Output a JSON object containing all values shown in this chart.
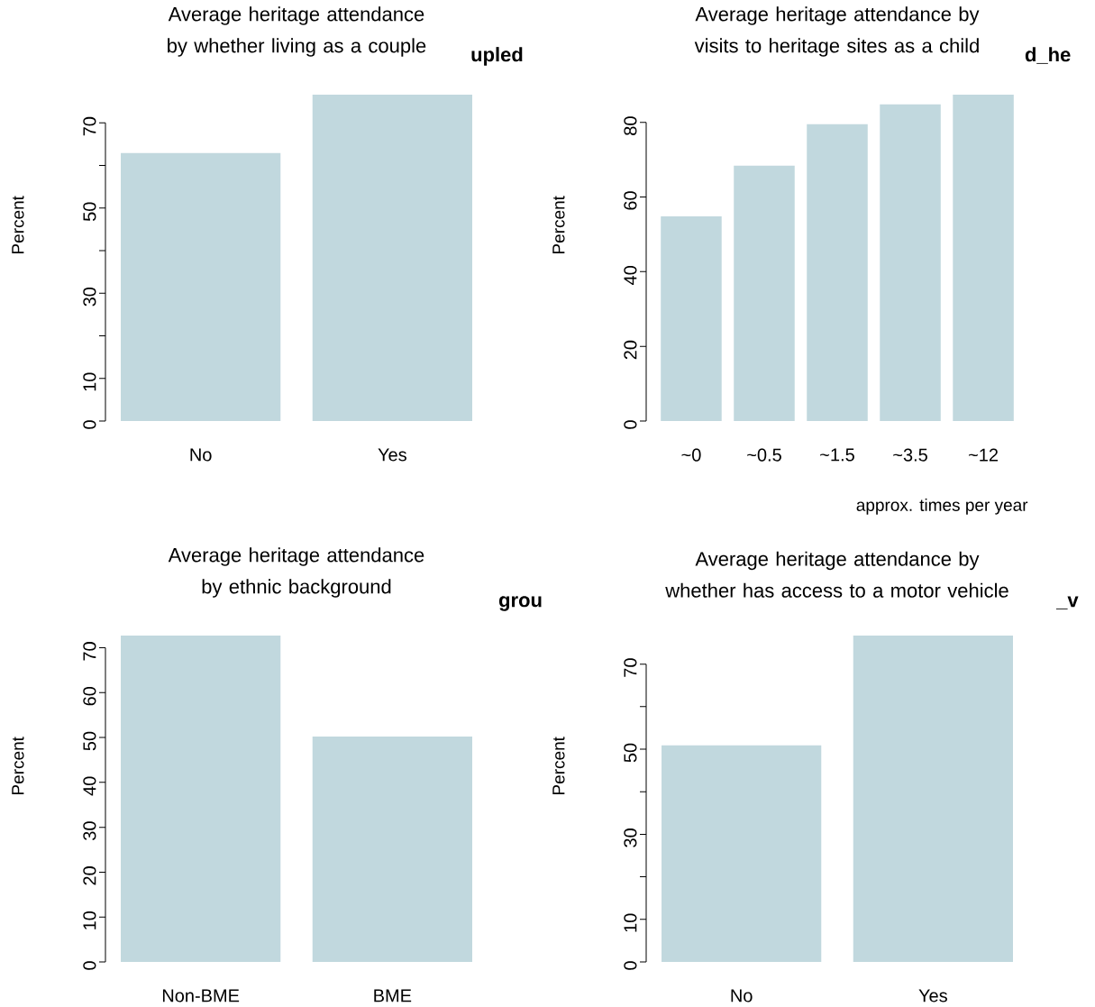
{
  "chart_data": [
    {
      "type": "bar",
      "title": "Average heritage attendance by whether living as a couple",
      "ylabel": "Percent",
      "categories": [
        "No",
        "Yes"
      ],
      "values": [
        62.9,
        76.6
      ],
      "color": "#c1d8de",
      "ylim": [
        0,
        76.6
      ],
      "yticks": [
        0,
        10,
        {
          "value": 20,
          "label": null
        },
        30,
        {
          "value": 40,
          "label": null
        },
        50,
        {
          "value": 60,
          "label": null
        },
        70
      ],
      "annotations": [
        "upled"
      ]
    },
    {
      "type": "bar",
      "title": "Average heritage attendance by visits to heritage sites as a child",
      "ylabel": "Percent",
      "xlabel": "approx. times per year",
      "categories": [
        "~0",
        "~0.5",
        "~1.5",
        "~3.5",
        "~12"
      ],
      "values": [
        54.8,
        68.4,
        79.5,
        84.8,
        87.4
      ],
      "color": "#c1d8de",
      "ylim": [
        0,
        87.4
      ],
      "yticks": [
        0,
        20,
        40,
        60,
        80
      ],
      "annotations": [
        "d_he"
      ]
    },
    {
      "type": "bar",
      "title": "Average heritage attendance by ethnic background",
      "ylabel": "Percent",
      "categories": [
        "Non-BME",
        "BME"
      ],
      "values": [
        72.7,
        50.2
      ],
      "color": "#c1d8de",
      "ylim": [
        0,
        72.7
      ],
      "yticks": [
        0,
        10,
        20,
        30,
        40,
        50,
        60,
        70
      ],
      "annotations": [
        "grou"
      ]
    },
    {
      "type": "bar",
      "title": "Average heritage attendance by whether has access to a motor vehicle",
      "ylabel": "Percent",
      "categories": [
        "No",
        "Yes"
      ],
      "values": [
        50.9,
        76.7
      ],
      "color": "#c1d8de",
      "ylim": [
        0,
        76.7
      ],
      "yticks": [
        0,
        10,
        {
          "value": 20,
          "label": null
        },
        30,
        {
          "value": 40,
          "label": null
        },
        50,
        {
          "value": 60,
          "label": null
        },
        70
      ],
      "annotations": [
        "_v"
      ]
    }
  ]
}
